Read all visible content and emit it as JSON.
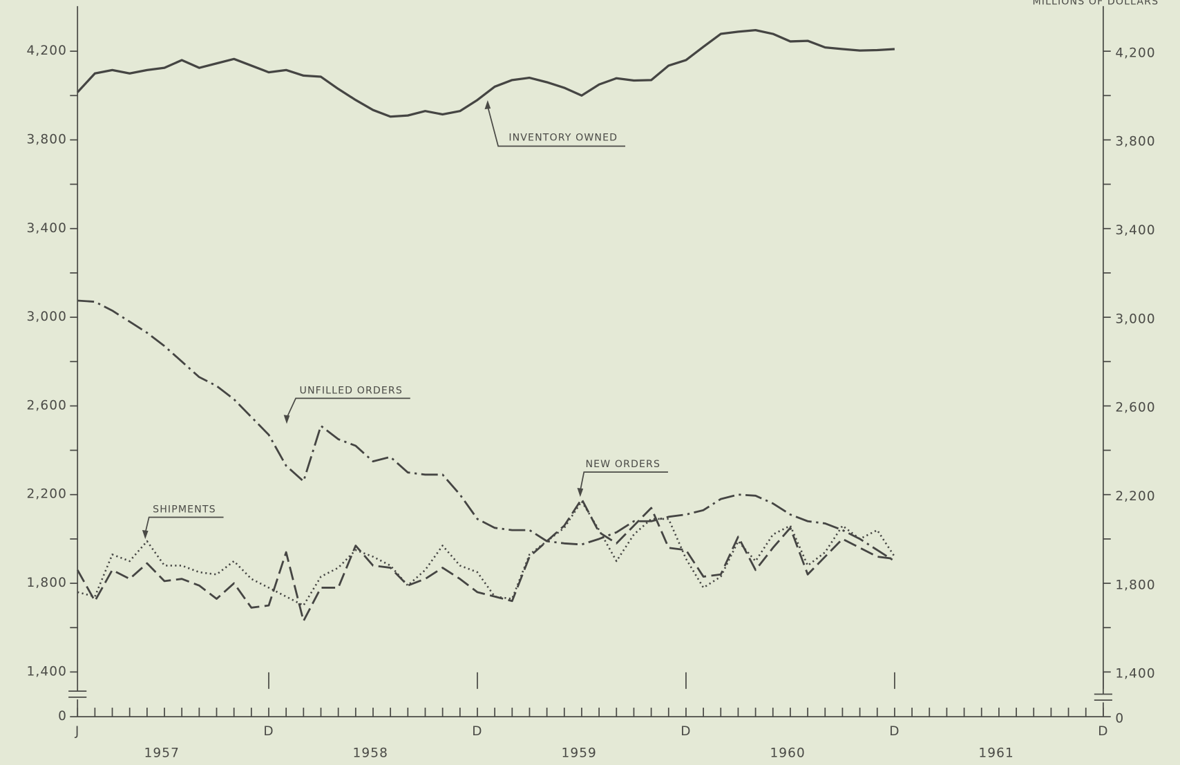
{
  "chart_data": {
    "type": "line",
    "y_axis_label": "MILLIONS OF DOLLARS",
    "categories": [
      "J",
      null,
      null,
      null,
      null,
      null,
      null,
      null,
      null,
      null,
      null,
      "D",
      null,
      null,
      null,
      null,
      null,
      null,
      null,
      null,
      null,
      null,
      null,
      "D",
      null,
      null,
      null,
      null,
      null,
      null,
      null,
      null,
      null,
      null,
      null,
      "D",
      null,
      null,
      null,
      null,
      null,
      null,
      null,
      null,
      null,
      null,
      null,
      "D",
      null,
      null,
      null,
      null,
      null,
      null,
      null,
      null,
      null,
      null,
      null,
      "D"
    ],
    "year_labels": [
      "1957",
      "1958",
      "1959",
      "1960",
      "1961"
    ],
    "series": [
      {
        "name": "INVENTORY OWNED",
        "color": "#454543",
        "line_style": "solid",
        "values": [
          4015,
          4100,
          4115,
          4100,
          4115,
          4125,
          4160,
          4125,
          4145,
          4165,
          4135,
          4105,
          4115,
          4090,
          4085,
          4030,
          3980,
          3935,
          3905,
          3910,
          3930,
          3915,
          3930,
          3980,
          4040,
          4070,
          4080,
          4060,
          4035,
          4000,
          4050,
          4078,
          4068,
          4070,
          4135,
          4160,
          4220,
          4278,
          4288,
          4295,
          4278,
          4244,
          4247,
          4217,
          4210,
          4203,
          4205,
          4210,
          null,
          null,
          null,
          null,
          null,
          null,
          null,
          null,
          null,
          null,
          null,
          null
        ]
      },
      {
        "name": "UNFILLED ORDERS",
        "color": "#454543",
        "line_style": "dash-dot",
        "values": [
          3075,
          3070,
          3030,
          2980,
          2930,
          2870,
          2800,
          2730,
          2690,
          2630,
          2550,
          2470,
          2330,
          2260,
          2510,
          2450,
          2420,
          2350,
          2370,
          2300,
          2290,
          2290,
          2200,
          2090,
          2050,
          2040,
          2040,
          1990,
          1980,
          1975,
          2000,
          2030,
          2080,
          2080,
          2100,
          2110,
          2130,
          2180,
          2200,
          2195,
          2160,
          2110,
          2080,
          2070,
          2040,
          2000,
          1950,
          1900,
          null,
          null,
          null,
          null,
          null,
          null,
          null,
          null,
          null,
          null,
          null,
          null
        ]
      },
      {
        "name": "NEW ORDERS",
        "color": "#454543",
        "line_style": "dashed",
        "values": [
          1860,
          1720,
          1860,
          1820,
          1890,
          1810,
          1820,
          1790,
          1730,
          1800,
          1690,
          1700,
          1940,
          1630,
          1780,
          1780,
          1970,
          1880,
          1870,
          1790,
          1820,
          1870,
          1820,
          1760,
          1740,
          1720,
          1920,
          1990,
          2060,
          2180,
          2030,
          1980,
          2060,
          2140,
          1960,
          1950,
          1830,
          1840,
          2010,
          1860,
          1960,
          2050,
          1840,
          1920,
          2000,
          1960,
          1920,
          1910,
          null,
          null,
          null,
          null,
          null,
          null,
          null,
          null,
          null,
          null,
          null,
          null
        ]
      },
      {
        "name": "SHIPMENTS",
        "color": "#454543",
        "line_style": "dotted",
        "values": [
          1760,
          1740,
          1930,
          1900,
          1990,
          1880,
          1880,
          1850,
          1840,
          1900,
          1820,
          1780,
          1740,
          1700,
          1830,
          1870,
          1950,
          1920,
          1880,
          1790,
          1860,
          1970,
          1880,
          1850,
          1740,
          1730,
          1930,
          1990,
          2050,
          2170,
          2040,
          1900,
          2020,
          2090,
          2090,
          1910,
          1780,
          1830,
          1990,
          1900,
          2020,
          2060,
          1880,
          1940,
          2060,
          2000,
          2040,
          1920,
          null,
          null,
          null,
          null,
          null,
          null,
          null,
          null,
          null,
          null,
          null,
          null
        ]
      }
    ],
    "ylim": [
      0,
      4400
    ],
    "axis_break": [
      0,
      1300
    ],
    "yticks": [
      0,
      {
        "value": 1400,
        "label": "1,400"
      },
      {
        "value": 1800,
        "label": "1,800"
      },
      {
        "value": 2200,
        "label": "2,200"
      },
      {
        "value": 2600,
        "label": "2,600"
      },
      {
        "value": 3000,
        "label": "3,000"
      },
      {
        "value": 3400,
        "label": "3,400"
      },
      {
        "value": 3800,
        "label": "3,800"
      },
      {
        "value": 4200,
        "label": "4,200"
      }
    ],
    "yminor_ticks": [
      1600,
      2000,
      2400,
      2800,
      3200,
      3600,
      4000
    ],
    "grid": false
  }
}
